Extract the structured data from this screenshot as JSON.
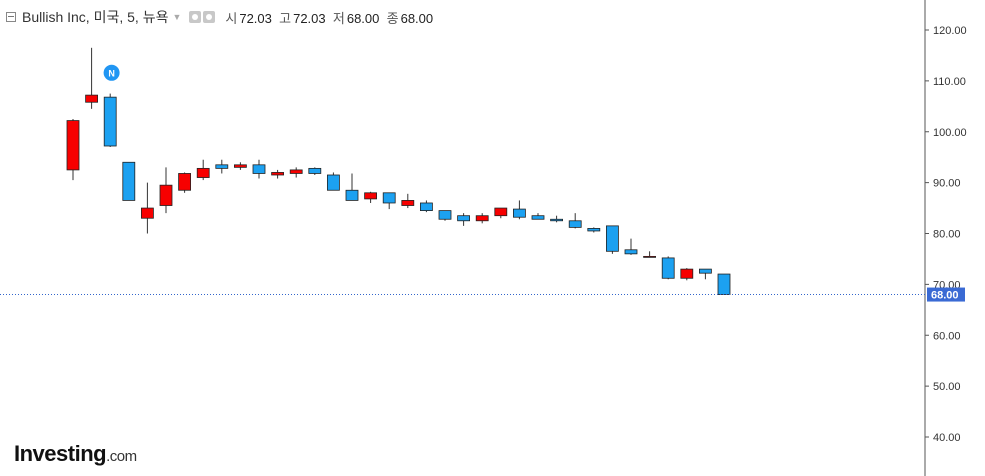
{
  "header": {
    "symbol": "Bullish Inc, 미국, 5, 뉴욕",
    "open_label": "시",
    "open_value": "72.03",
    "high_label": "고",
    "high_value": "72.03",
    "low_label": "저",
    "low_value": "68.00",
    "close_label": "종",
    "close_value": "68.00"
  },
  "logo": {
    "brand": "Investing",
    "suffix": ".com"
  },
  "news_marker": {
    "label": "N",
    "color": "#2196f3"
  },
  "colors": {
    "up": "#f70000",
    "down": "#1ca1f1",
    "wick": "#333333",
    "price_line": "#3366cc",
    "price_label_bg": "#3a6ad4"
  },
  "chart_data": {
    "type": "candlestick",
    "ylim": [
      35,
      125
    ],
    "y_ticks": [
      "120.00",
      "110.00",
      "100.00",
      "90.00",
      "80.00",
      "70.00",
      "60.00",
      "50.00",
      "40.00"
    ],
    "last_price": "68.00",
    "grid": false,
    "candles": [
      {
        "o": 92.5,
        "h": 102.5,
        "l": 90.5,
        "c": 102.2
      },
      {
        "o": 105.8,
        "h": 116.5,
        "l": 104.5,
        "c": 107.2
      },
      {
        "o": 106.8,
        "h": 107.5,
        "l": 97.0,
        "c": 97.2
      },
      {
        "o": 94.0,
        "h": 94.0,
        "l": 86.5,
        "c": 86.5
      },
      {
        "o": 83.0,
        "h": 90.0,
        "l": 80.0,
        "c": 85.0
      },
      {
        "o": 85.5,
        "h": 93.0,
        "l": 84.0,
        "c": 89.5
      },
      {
        "o": 88.5,
        "h": 92.0,
        "l": 88.0,
        "c": 91.8
      },
      {
        "o": 91.0,
        "h": 94.5,
        "l": 90.5,
        "c": 92.8
      },
      {
        "o": 93.5,
        "h": 94.5,
        "l": 91.8,
        "c": 92.8
      },
      {
        "o": 93.0,
        "h": 94.0,
        "l": 92.5,
        "c": 93.5
      },
      {
        "o": 93.5,
        "h": 94.5,
        "l": 90.8,
        "c": 91.8
      },
      {
        "o": 91.5,
        "h": 92.5,
        "l": 90.8,
        "c": 92.0
      },
      {
        "o": 91.8,
        "h": 93.0,
        "l": 91.0,
        "c": 92.5
      },
      {
        "o": 92.8,
        "h": 93.0,
        "l": 91.5,
        "c": 91.8
      },
      {
        "o": 91.5,
        "h": 92.0,
        "l": 88.5,
        "c": 88.5
      },
      {
        "o": 88.5,
        "h": 91.8,
        "l": 86.5,
        "c": 86.5
      },
      {
        "o": 86.8,
        "h": 88.2,
        "l": 86.0,
        "c": 88.0
      },
      {
        "o": 88.0,
        "h": 88.0,
        "l": 84.8,
        "c": 86.0
      },
      {
        "o": 85.5,
        "h": 87.8,
        "l": 85.0,
        "c": 86.5
      },
      {
        "o": 86.0,
        "h": 86.5,
        "l": 84.2,
        "c": 84.5
      },
      {
        "o": 84.5,
        "h": 84.5,
        "l": 82.5,
        "c": 82.8
      },
      {
        "o": 83.5,
        "h": 84.0,
        "l": 81.5,
        "c": 82.5
      },
      {
        "o": 82.5,
        "h": 84.0,
        "l": 82.0,
        "c": 83.5
      },
      {
        "o": 83.5,
        "h": 85.0,
        "l": 83.0,
        "c": 85.0
      },
      {
        "o": 84.8,
        "h": 86.5,
        "l": 82.8,
        "c": 83.2
      },
      {
        "o": 83.5,
        "h": 84.0,
        "l": 82.8,
        "c": 82.8
      },
      {
        "o": 82.8,
        "h": 83.5,
        "l": 82.2,
        "c": 82.5
      },
      {
        "o": 82.5,
        "h": 84.0,
        "l": 81.0,
        "c": 81.2
      },
      {
        "o": 81.0,
        "h": 81.2,
        "l": 80.2,
        "c": 80.5
      },
      {
        "o": 81.5,
        "h": 81.5,
        "l": 76.0,
        "c": 76.5
      },
      {
        "o": 76.8,
        "h": 79.0,
        "l": 75.8,
        "c": 76.0
      },
      {
        "o": 75.5,
        "h": 76.5,
        "l": 75.3,
        "c": 75.5
      },
      {
        "o": 75.2,
        "h": 75.5,
        "l": 71.0,
        "c": 71.2
      },
      {
        "o": 71.2,
        "h": 73.2,
        "l": 70.8,
        "c": 73.0
      },
      {
        "o": 73.0,
        "h": 73.0,
        "l": 71.0,
        "c": 72.2
      },
      {
        "o": 72.03,
        "h": 72.03,
        "l": 68.0,
        "c": 68.0
      }
    ],
    "news_candle_index": 1
  }
}
